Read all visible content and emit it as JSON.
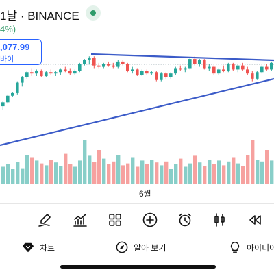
{
  "header": {
    "title": "1날 · BINANCE",
    "change": "4%)"
  },
  "price_tag": {
    "value": ",077.99",
    "label": "바이"
  },
  "chart_data": {
    "type": "candlestick",
    "x_tick": "6월",
    "colors": {
      "up": "#26a69a",
      "down": "#ef5350",
      "trendline": "#3b5bc8"
    },
    "candles": [
      {
        "o": 93,
        "h": 97,
        "l": 90,
        "c": 96
      },
      {
        "o": 96,
        "h": 102,
        "l": 95,
        "c": 101
      },
      {
        "o": 101,
        "h": 104,
        "l": 100,
        "c": 103
      },
      {
        "o": 103,
        "h": 112,
        "l": 102,
        "c": 111
      },
      {
        "o": 111,
        "h": 116,
        "l": 108,
        "c": 115
      },
      {
        "o": 115,
        "h": 120,
        "l": 114,
        "c": 119
      },
      {
        "o": 119,
        "h": 122,
        "l": 116,
        "c": 118
      },
      {
        "o": 118,
        "h": 121,
        "l": 116,
        "c": 120
      },
      {
        "o": 120,
        "h": 121,
        "l": 115,
        "c": 116
      },
      {
        "o": 116,
        "h": 120,
        "l": 115,
        "c": 119
      },
      {
        "o": 119,
        "h": 121,
        "l": 117,
        "c": 118
      },
      {
        "o": 118,
        "h": 120,
        "l": 116,
        "c": 119
      },
      {
        "o": 119,
        "h": 122,
        "l": 117,
        "c": 121
      },
      {
        "o": 121,
        "h": 123,
        "l": 119,
        "c": 120
      },
      {
        "o": 120,
        "h": 122,
        "l": 117,
        "c": 118
      },
      {
        "o": 118,
        "h": 121,
        "l": 117,
        "c": 120
      },
      {
        "o": 120,
        "h": 126,
        "l": 119,
        "c": 125
      },
      {
        "o": 125,
        "h": 129,
        "l": 124,
        "c": 128
      },
      {
        "o": 128,
        "h": 131,
        "l": 125,
        "c": 130
      },
      {
        "o": 130,
        "h": 131,
        "l": 122,
        "c": 124
      },
      {
        "o": 124,
        "h": 126,
        "l": 122,
        "c": 123
      },
      {
        "o": 123,
        "h": 126,
        "l": 122,
        "c": 125
      },
      {
        "o": 125,
        "h": 127,
        "l": 123,
        "c": 124
      },
      {
        "o": 124,
        "h": 126,
        "l": 122,
        "c": 123
      },
      {
        "o": 123,
        "h": 128,
        "l": 122,
        "c": 127
      },
      {
        "o": 127,
        "h": 128,
        "l": 124,
        "c": 125
      },
      {
        "o": 125,
        "h": 126,
        "l": 119,
        "c": 120
      },
      {
        "o": 120,
        "h": 123,
        "l": 118,
        "c": 121
      },
      {
        "o": 121,
        "h": 122,
        "l": 116,
        "c": 117
      },
      {
        "o": 117,
        "h": 121,
        "l": 116,
        "c": 120
      },
      {
        "o": 120,
        "h": 121,
        "l": 117,
        "c": 118
      },
      {
        "o": 118,
        "h": 120,
        "l": 117,
        "c": 119
      },
      {
        "o": 119,
        "h": 120,
        "l": 112,
        "c": 113
      },
      {
        "o": 113,
        "h": 119,
        "l": 112,
        "c": 118
      },
      {
        "o": 118,
        "h": 119,
        "l": 114,
        "c": 115
      },
      {
        "o": 115,
        "h": 119,
        "l": 114,
        "c": 118
      },
      {
        "o": 118,
        "h": 123,
        "l": 117,
        "c": 122
      },
      {
        "o": 122,
        "h": 124,
        "l": 120,
        "c": 121
      },
      {
        "o": 121,
        "h": 123,
        "l": 119,
        "c": 122
      },
      {
        "o": 122,
        "h": 130,
        "l": 121,
        "c": 129
      },
      {
        "o": 129,
        "h": 131,
        "l": 124,
        "c": 125
      },
      {
        "o": 125,
        "h": 129,
        "l": 123,
        "c": 128
      },
      {
        "o": 128,
        "h": 129,
        "l": 121,
        "c": 122
      },
      {
        "o": 122,
        "h": 125,
        "l": 120,
        "c": 123
      },
      {
        "o": 123,
        "h": 124,
        "l": 117,
        "c": 118
      },
      {
        "o": 118,
        "h": 122,
        "l": 117,
        "c": 121
      },
      {
        "o": 121,
        "h": 124,
        "l": 119,
        "c": 120
      },
      {
        "o": 120,
        "h": 126,
        "l": 119,
        "c": 125
      },
      {
        "o": 125,
        "h": 126,
        "l": 120,
        "c": 121
      },
      {
        "o": 121,
        "h": 125,
        "l": 119,
        "c": 124
      },
      {
        "o": 124,
        "h": 126,
        "l": 120,
        "c": 121
      },
      {
        "o": 121,
        "h": 123,
        "l": 117,
        "c": 118
      },
      {
        "o": 118,
        "h": 120,
        "l": 112,
        "c": 114
      },
      {
        "o": 114,
        "h": 120,
        "l": 113,
        "c": 119
      },
      {
        "o": 119,
        "h": 124,
        "l": 118,
        "c": 123
      },
      {
        "o": 123,
        "h": 125,
        "l": 120,
        "c": 121
      },
      {
        "o": 121,
        "h": 127,
        "l": 120,
        "c": 126
      }
    ],
    "volumes": [
      35,
      40,
      30,
      45,
      32,
      60,
      55,
      48,
      42,
      38,
      50,
      44,
      36,
      62,
      40,
      35,
      48,
      90,
      58,
      45,
      70,
      52,
      40,
      46,
      60,
      38,
      42,
      55,
      35,
      48,
      40,
      50,
      44,
      38,
      46,
      30,
      40,
      52,
      35,
      42,
      58,
      44,
      36,
      50,
      40,
      48,
      38,
      46,
      55,
      42,
      36,
      60,
      90,
      50,
      46,
      70,
      48
    ]
  },
  "toolbar": {
    "icons": [
      "draw-icon",
      "indicators-icon",
      "layout-icon",
      "add-icon",
      "alert-icon",
      "candles-icon",
      "replay-icon"
    ]
  },
  "nav": {
    "chart": "차트",
    "learn": "알아 보기",
    "ideas": "아이디어"
  }
}
